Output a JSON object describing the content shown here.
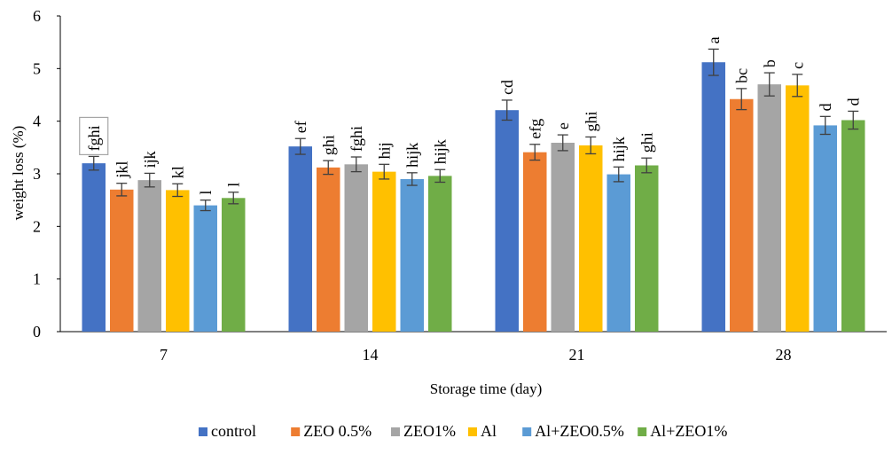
{
  "chart_data": {
    "type": "bar",
    "categories": [
      "7",
      "14",
      "21",
      "28"
    ],
    "series": [
      {
        "name": "control",
        "color": "#4472C4",
        "values": [
          3.2,
          3.52,
          4.21,
          5.12
        ],
        "errors": [
          0.13,
          0.15,
          0.19,
          0.25
        ],
        "labels": [
          "fghi",
          "ef",
          "cd",
          "a"
        ]
      },
      {
        "name": "ZEO 0.5%",
        "color": "#ED7D31",
        "values": [
          2.7,
          3.12,
          3.41,
          4.42
        ],
        "errors": [
          0.12,
          0.13,
          0.15,
          0.2
        ],
        "labels": [
          "jkl",
          "ghi",
          "efg",
          "bc"
        ]
      },
      {
        "name": "ZEO1%",
        "color": "#A5A5A5",
        "values": [
          2.88,
          3.18,
          3.59,
          4.7
        ],
        "errors": [
          0.13,
          0.14,
          0.15,
          0.22
        ],
        "labels": [
          "ijk",
          "fghi",
          "e",
          "b"
        ]
      },
      {
        "name": "Al",
        "color": "#FFC000",
        "values": [
          2.69,
          3.04,
          3.54,
          4.68
        ],
        "errors": [
          0.12,
          0.14,
          0.16,
          0.21
        ],
        "labels": [
          "kl",
          "hij",
          "ghi",
          "c"
        ]
      },
      {
        "name": "Al+ZEO0.5%",
        "color": "#5B9BD5",
        "values": [
          2.4,
          2.9,
          2.99,
          3.92
        ],
        "errors": [
          0.1,
          0.12,
          0.14,
          0.17
        ],
        "labels": [
          "l",
          "hijk",
          "hijk",
          "d"
        ]
      },
      {
        "name": "Al+ZEO1%",
        "color": "#70AD47",
        "values": [
          2.54,
          2.96,
          3.16,
          4.02
        ],
        "errors": [
          0.11,
          0.12,
          0.14,
          0.17
        ],
        "labels": [
          "l",
          "hijk",
          "ghi",
          "d"
        ]
      }
    ],
    "title": "",
    "xlabel": "Storage time (day)",
    "ylabel": "weight loss (%)",
    "ylim": [
      0,
      6
    ],
    "yticks": [
      "0",
      "1",
      "2",
      "3",
      "4",
      "5",
      "6"
    ],
    "grid": false,
    "legend_position": "bottom",
    "boxed_label": "fghi"
  }
}
